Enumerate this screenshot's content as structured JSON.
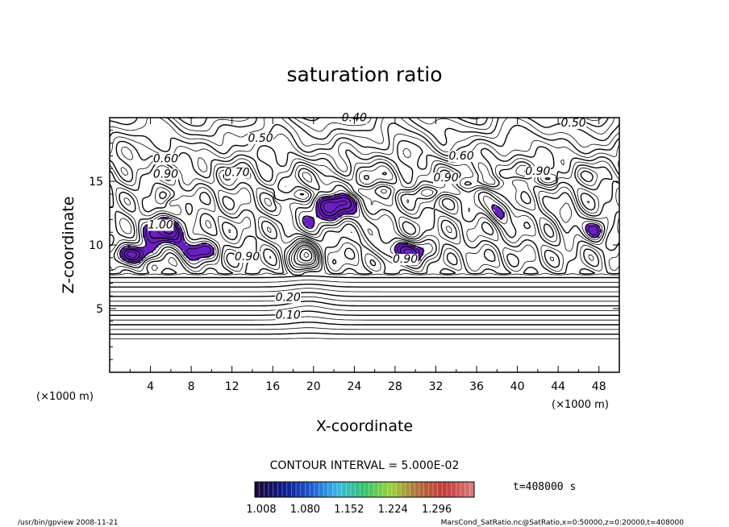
{
  "chart_data": {
    "type": "contour",
    "title": "saturation ratio",
    "xlabel": "X-coordinate",
    "ylabel": "Z-coordinate",
    "x_unit": "(×1000 m)",
    "y_unit": "(×1000 m)",
    "xlim": [
      0,
      50
    ],
    "ylim": [
      0,
      20
    ],
    "x_ticks": [
      "4",
      "8",
      "12",
      "16",
      "20",
      "24",
      "28",
      "32",
      "36",
      "40",
      "44",
      "48"
    ],
    "y_ticks": [
      "5",
      "10",
      "15"
    ],
    "contour_interval": "CONTOUR INTERVAL = 5.000E-02",
    "contour_labels": [
      {
        "text": "0.40",
        "x": 24.0,
        "z": 19.7
      },
      {
        "text": "0.50",
        "x": 45.5,
        "z": 19.3
      },
      {
        "text": "0.50",
        "x": 14.8,
        "z": 18.1
      },
      {
        "text": "0.60",
        "x": 5.5,
        "z": 16.5
      },
      {
        "text": "0.60",
        "x": 34.5,
        "z": 16.7
      },
      {
        "text": "0.90",
        "x": 5.5,
        "z": 15.3
      },
      {
        "text": "0.90",
        "x": 42.0,
        "z": 15.5
      },
      {
        "text": "0.70",
        "x": 12.5,
        "z": 15.4
      },
      {
        "text": "0.90",
        "x": 33.0,
        "z": 15.0
      },
      {
        "text": "1.00",
        "x": 5.0,
        "z": 11.3
      },
      {
        "text": "0.90",
        "x": 13.5,
        "z": 8.8
      },
      {
        "text": "0.90",
        "x": 29.0,
        "z": 8.6
      },
      {
        "text": "0.20",
        "x": 17.5,
        "z": 5.6
      },
      {
        "text": "0.10",
        "x": 17.5,
        "z": 4.2
      }
    ],
    "shaded_threshold": 1.0,
    "colorbar": {
      "ticks": [
        "1.008",
        "1.080",
        "1.152",
        "1.224",
        "1.296"
      ],
      "min": 1.008,
      "max": 1.296,
      "colors": [
        "#1a0a3a",
        "#0c1a8a",
        "#1e5ad0",
        "#3bb8e6",
        "#36c26a",
        "#9ad23a",
        "#b36b3a",
        "#c23a3a",
        "#d87a7a"
      ]
    },
    "time_label": "t=408000 s",
    "shading_color": "#6a20c0"
  },
  "footer": {
    "left": "/usr/bin/gpview  2008-11-21",
    "right": "MarsCond_SatRatio.nc@SatRatio,x=0:50000,z=0:20000,t=408000"
  }
}
